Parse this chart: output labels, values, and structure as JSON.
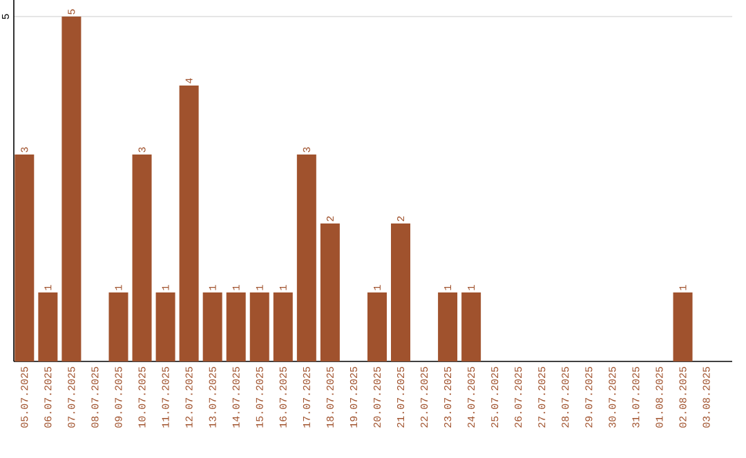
{
  "chart_data": {
    "type": "bar",
    "color": "#a0522d",
    "categories": [
      "05.07.2025",
      "06.07.2025",
      "07.07.2025",
      "08.07.2025",
      "09.07.2025",
      "10.07.2025",
      "11.07.2025",
      "12.07.2025",
      "13.07.2025",
      "14.07.2025",
      "15.07.2025",
      "16.07.2025",
      "17.07.2025",
      "18.07.2025",
      "19.07.2025",
      "20.07.2025",
      "21.07.2025",
      "22.07.2025",
      "23.07.2025",
      "24.07.2025",
      "25.07.2025",
      "26.07.2025",
      "27.07.2025",
      "28.07.2025",
      "29.07.2025",
      "30.07.2025",
      "31.07.2025",
      "01.08.2025",
      "02.08.2025",
      "03.08.2025"
    ],
    "values": [
      3,
      1,
      5,
      0,
      1,
      3,
      1,
      4,
      1,
      1,
      1,
      1,
      3,
      2,
      0,
      1,
      2,
      0,
      1,
      1,
      0,
      0,
      0,
      0,
      0,
      0,
      0,
      0,
      1,
      0
    ],
    "value_labels": [
      "3",
      "1",
      "5",
      null,
      "1",
      "3",
      "1",
      "4",
      "1",
      "1",
      "1",
      "1",
      "3",
      "2",
      null,
      "1",
      "2",
      null,
      "1",
      "1",
      null,
      null,
      null,
      null,
      null,
      null,
      null,
      null,
      "1",
      null
    ],
    "ylim": [
      0,
      5.24
    ],
    "yticks": [
      5
    ],
    "grid": "y"
  }
}
